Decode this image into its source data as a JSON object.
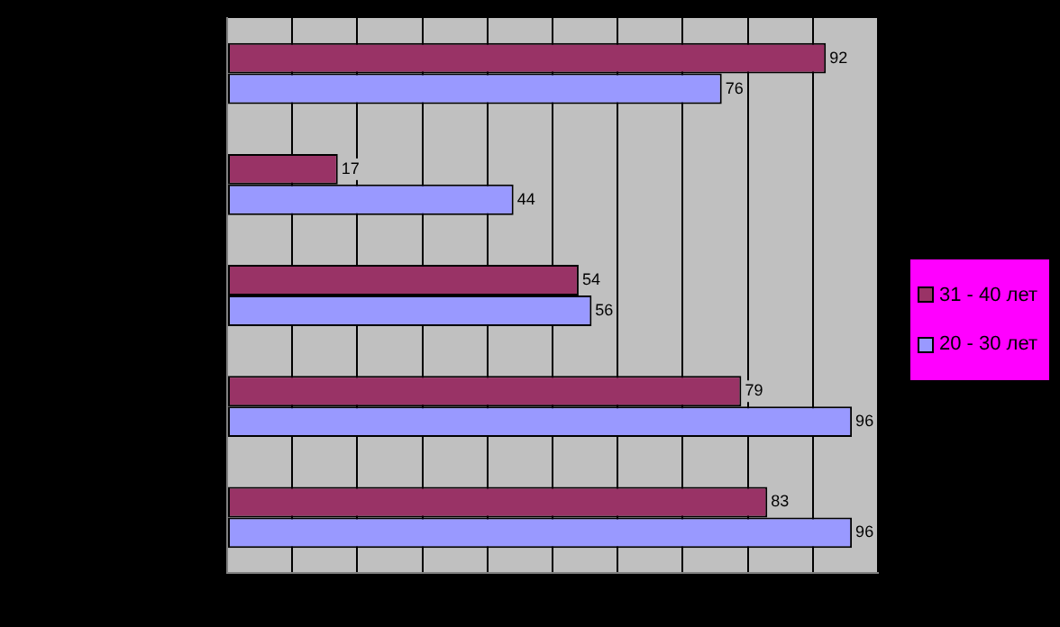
{
  "chart_data": {
    "type": "bar",
    "orientation": "horizontal",
    "categories": [
      null,
      null,
      null,
      null,
      null
    ],
    "series": [
      {
        "name": "31 - 40 лет",
        "color": "#993366",
        "values": [
          92,
          17,
          54,
          79,
          83
        ]
      },
      {
        "name": "20 - 30 лет",
        "color": "#9999ff",
        "values": [
          76,
          44,
          56,
          96,
          96
        ]
      }
    ],
    "xlim": [
      0,
      100
    ],
    "xticks": [
      0,
      10,
      20,
      30,
      40,
      50,
      60,
      70,
      80,
      90,
      100
    ],
    "tick_labels": false,
    "grid": "x",
    "legend": "right",
    "data_labels": true
  }
}
